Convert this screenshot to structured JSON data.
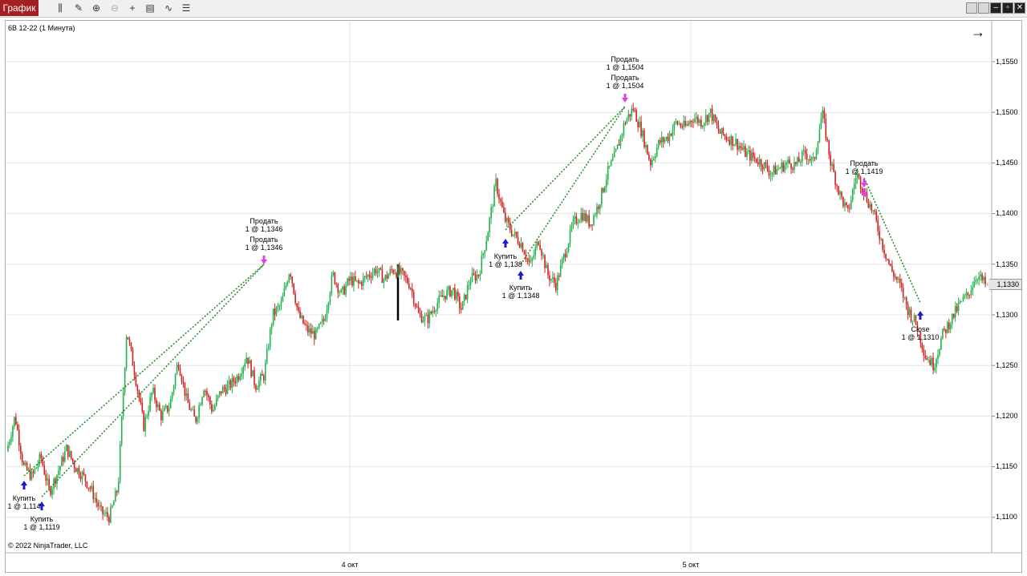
{
  "toolbar": {
    "tab_label": "График",
    "tools": [
      "bars-icon",
      "pencil-icon",
      "zoom-in-icon",
      "zoom-out-icon",
      "crosshair-icon",
      "properties-icon",
      "indicators-icon",
      "list-icon"
    ],
    "window_buttons": [
      "restore-left-icon",
      "restore-right-icon",
      "minimize-icon",
      "maximize-icon",
      "close-icon"
    ]
  },
  "chart": {
    "instrument": "6B 12-22 (1 Минута)",
    "copyright": "© 2022 NinjaTrader, LLC",
    "current_price": "1,1330",
    "y_axis_labels": [
      "1,1550",
      "1,1500",
      "1,1450",
      "1,1400",
      "1,1350",
      "1,1300",
      "1,1250",
      "1,1200",
      "1,1150",
      "1,1100"
    ],
    "x_axis_labels": [
      "4 окт",
      "5 окт"
    ],
    "colors": {
      "up": "#22b14c",
      "down": "#d02020",
      "buy_marker": "#1a1acc",
      "sell_marker": "#e040e0",
      "trade_line": "#1e8b1e"
    }
  },
  "trades": [
    {
      "kind": "buy",
      "text1": "Купить",
      "text2": "1 @ 1,114"
    },
    {
      "kind": "buy",
      "text1": "Купить",
      "text2": "1 @ 1,1119"
    },
    {
      "kind": "sell",
      "text1": "Продать",
      "text2": "1 @ 1,1346"
    },
    {
      "kind": "sell",
      "text1": "Продать",
      "text2": "1 @ 1,1346"
    },
    {
      "kind": "buy",
      "text1": "Купить",
      "text2": "1 @ 1,138"
    },
    {
      "kind": "buy",
      "text1": "Купить",
      "text2": "1 @ 1,1348"
    },
    {
      "kind": "sell",
      "text1": "Продать",
      "text2": "1 @ 1,1504"
    },
    {
      "kind": "sell",
      "text1": "Продать",
      "text2": "1 @ 1,1504"
    },
    {
      "kind": "sell",
      "text1": "Продать",
      "text2": "1 @ 1,1419"
    },
    {
      "kind": "close",
      "text1": "Close",
      "text2": "1 @ 1,1310"
    }
  ],
  "chart_data": {
    "type": "line",
    "note_series": "1-minute price path (approximate)",
    "x_axis": [
      "4 окт",
      "5 окт"
    ],
    "ylim": [
      1.1075,
      1.1575
    ],
    "series": [
      {
        "values": [
          1.1165,
          1.12,
          1.115,
          1.114,
          1.116,
          1.1125,
          1.1145,
          1.1168,
          1.115,
          1.114,
          1.1125,
          1.1105,
          1.11,
          1.113,
          1.1285,
          1.124,
          1.119,
          1.1225,
          1.12,
          1.121,
          1.1255,
          1.1215,
          1.1195,
          1.123,
          1.1205,
          1.1225,
          1.123,
          1.124,
          1.126,
          1.123,
          1.124,
          1.13,
          1.131,
          1.1346,
          1.13,
          1.1285,
          1.128,
          1.1295,
          1.134,
          1.132,
          1.1335,
          1.133,
          1.1338,
          1.1345,
          1.1335,
          1.1345,
          1.134,
          1.133,
          1.13,
          1.1295,
          1.131,
          1.132,
          1.1325,
          1.1305,
          1.1335,
          1.134,
          1.138,
          1.143,
          1.1395,
          1.138,
          1.137,
          1.1348,
          1.1375,
          1.134,
          1.133,
          1.136,
          1.139,
          1.14,
          1.139,
          1.141,
          1.144,
          1.146,
          1.149,
          1.1504,
          1.148,
          1.145,
          1.147,
          1.1475,
          1.149,
          1.1485,
          1.1495,
          1.149,
          1.15,
          1.148,
          1.1475,
          1.147,
          1.146,
          1.1455,
          1.145,
          1.144,
          1.1445,
          1.145,
          1.1448,
          1.146,
          1.145,
          1.15,
          1.145,
          1.142,
          1.14,
          1.144,
          1.1419,
          1.14,
          1.137,
          1.1345,
          1.133,
          1.1305,
          1.129,
          1.126,
          1.125,
          1.128,
          1.1295,
          1.131,
          1.132,
          1.134,
          1.133
        ]
      }
    ]
  }
}
